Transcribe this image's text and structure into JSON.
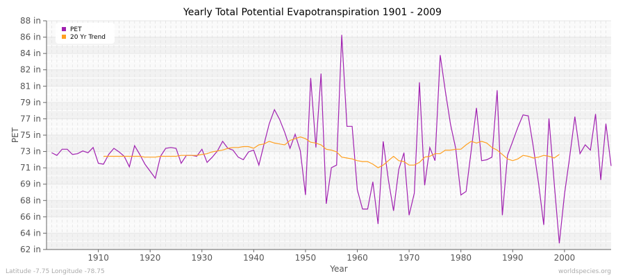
{
  "chart_data": {
    "type": "line",
    "title": "Yearly Total Potential Evapotranspiration 1901 - 2009",
    "xlabel": "Year",
    "ylabel": "PET",
    "xlim": [
      1900,
      2009
    ],
    "ylim": [
      62,
      88
    ],
    "y_ticks": [
      "88 in",
      "86 in",
      "84 in",
      "82 in",
      "81 in",
      "79 in",
      "77 in",
      "75 in",
      "73 in",
      "71 in",
      "69 in",
      "68 in",
      "66 in",
      "64 in",
      "62 in"
    ],
    "x_ticks": [
      1910,
      1920,
      1930,
      1940,
      1950,
      1960,
      1970,
      1980,
      1990,
      2000
    ],
    "grid": true,
    "legend_position": "top-left",
    "series": [
      {
        "name": "PET",
        "color": "#a020b0",
        "x_start": 1901,
        "values": [
          73.0,
          72.7,
          73.4,
          73.4,
          72.8,
          72.9,
          73.2,
          73.0,
          73.6,
          71.8,
          71.7,
          72.8,
          73.5,
          73.1,
          72.6,
          71.4,
          73.8,
          72.8,
          71.7,
          70.9,
          70.1,
          72.6,
          73.5,
          73.6,
          73.5,
          71.8,
          72.7,
          72.7,
          72.6,
          73.4,
          71.9,
          72.5,
          73.2,
          74.3,
          73.5,
          73.3,
          72.5,
          72.2,
          73.1,
          73.3,
          71.6,
          74.0,
          76.3,
          77.9,
          76.8,
          75.3,
          73.5,
          75.1,
          73.2,
          68.2,
          81.5,
          73.6,
          82.0,
          67.2,
          71.3,
          71.6,
          86.4,
          76.0,
          76.0,
          68.8,
          66.6,
          66.6,
          69.7,
          64.9,
          74.3,
          69.9,
          66.4,
          71.1,
          73.0,
          65.9,
          68.4,
          81.0,
          69.3,
          73.6,
          72.1,
          84.1,
          80.0,
          76.2,
          73.5,
          68.2,
          68.6,
          73.3,
          78.1,
          72.1,
          72.2,
          72.5,
          80.1,
          65.9,
          72.7,
          74.3,
          75.9,
          77.3,
          77.2,
          73.6,
          69.5,
          64.8,
          76.9,
          69.6,
          62.7,
          68.3,
          72.5,
          77.1,
          72.9,
          73.9,
          73.3,
          77.4,
          69.9,
          76.3,
          71.5
        ]
      },
      {
        "name": "20 Yr Trend",
        "color": "#ffa020",
        "x_start": 1911,
        "values": [
          72.6,
          72.6,
          72.6,
          72.6,
          72.6,
          72.6,
          72.6,
          72.6,
          72.5,
          72.5,
          72.5,
          72.6,
          72.6,
          72.6,
          72.6,
          72.7,
          72.7,
          72.7,
          72.7,
          72.8,
          72.9,
          73.1,
          73.2,
          73.3,
          73.5,
          73.6,
          73.6,
          73.7,
          73.7,
          73.5,
          73.9,
          74.0,
          74.3,
          74.1,
          74.0,
          73.9,
          74.4,
          74.6,
          74.8,
          74.6,
          74.2,
          74.1,
          73.9,
          73.4,
          73.3,
          73.1,
          72.5,
          72.4,
          72.3,
          72.1,
          72.0,
          72.0,
          71.7,
          71.3,
          71.6,
          72.1,
          72.6,
          72.1,
          72.0,
          71.6,
          71.6,
          71.9,
          72.5,
          72.6,
          72.9,
          72.9,
          73.3,
          73.3,
          73.4,
          73.4,
          73.9,
          74.3,
          74.1,
          74.3,
          74.1,
          73.6,
          73.3,
          72.8,
          72.3,
          72.1,
          72.3,
          72.7,
          72.6,
          72.4,
          72.5,
          72.7,
          72.6,
          72.4,
          72.8
        ]
      }
    ]
  },
  "footer": {
    "left": "Latitude -7.75 Longitude -78.75",
    "right": "worldspecies.org"
  }
}
